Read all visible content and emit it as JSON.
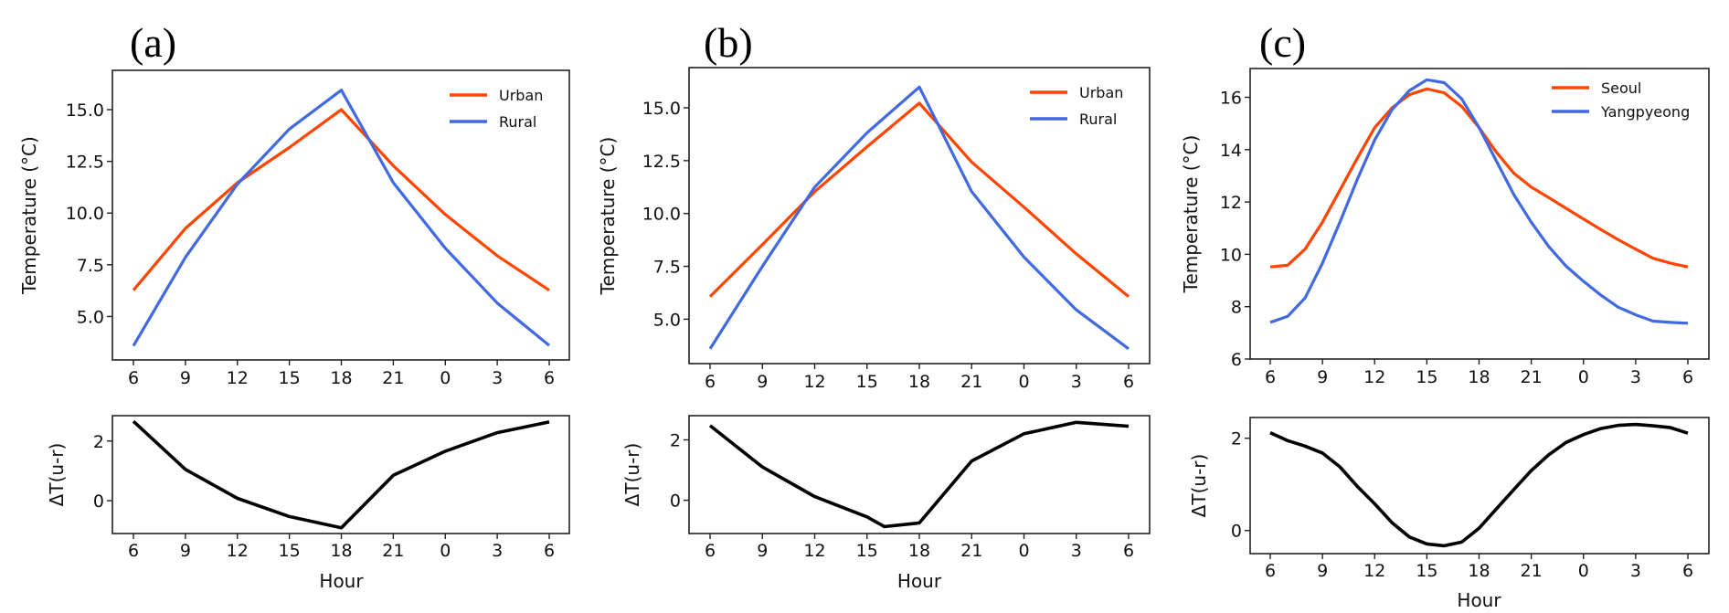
{
  "figure": {
    "panels": [
      "(a)",
      "(b)",
      "(c)"
    ],
    "colors": {
      "urban": "#ff4500",
      "rural": "#4169e1",
      "delta": "#000000"
    }
  },
  "chart_data": [
    {
      "id": "a-temp",
      "type": "line",
      "panel_label": "(a)",
      "title": "",
      "xlabel": "",
      "ylabel": "Temperature (°C)",
      "x": [
        0,
        3,
        6,
        9,
        12,
        15,
        18,
        21,
        24
      ],
      "xtick_labels": [
        "6",
        "9",
        "12",
        "15",
        "18",
        "21",
        "0",
        "3",
        "6"
      ],
      "yticks": [
        5.0,
        7.5,
        10.0,
        12.5,
        15.0
      ],
      "ytick_labels": [
        "5.0",
        "7.5",
        "10.0",
        "12.5",
        "15.0"
      ],
      "ylim": [
        2.9,
        16.9
      ],
      "legend_position": "top-right",
      "series": [
        {
          "name": "Urban",
          "color": "#ff4500",
          "values": [
            6.27,
            9.26,
            11.47,
            13.17,
            15.0,
            12.29,
            9.93,
            7.94,
            6.27
          ]
        },
        {
          "name": "Rural",
          "color": "#4169e1",
          "values": [
            3.58,
            7.86,
            11.4,
            14.06,
            15.94,
            11.47,
            8.3,
            5.65,
            3.6
          ]
        }
      ]
    },
    {
      "id": "a-delta",
      "type": "line",
      "panel_label": "",
      "xlabel": "Hour",
      "ylabel": "ΔT(u-r)",
      "x": [
        0,
        3,
        6,
        9,
        12,
        15,
        18,
        21,
        24
      ],
      "xtick_labels": [
        "6",
        "9",
        "12",
        "15",
        "18",
        "21",
        "0",
        "3",
        "6"
      ],
      "yticks": [
        0,
        2
      ],
      "ytick_labels": [
        "0",
        "2"
      ],
      "ylim": [
        -1.1,
        2.85
      ],
      "series": [
        {
          "name": "ΔT",
          "color": "#000000",
          "values": [
            2.66,
            1.05,
            0.08,
            -0.53,
            -0.91,
            0.85,
            1.66,
            2.28,
            2.64
          ]
        }
      ]
    },
    {
      "id": "b-temp",
      "type": "line",
      "panel_label": "(b)",
      "xlabel": "",
      "ylabel": "Temperature (°C)",
      "x": [
        0,
        3,
        6,
        9,
        12,
        15,
        18,
        21,
        24
      ],
      "xtick_labels": [
        "6",
        "9",
        "12",
        "15",
        "18",
        "21",
        "0",
        "3",
        "6"
      ],
      "yticks": [
        5.0,
        7.5,
        10.0,
        12.5,
        15.0
      ],
      "ytick_labels": [
        "5.0",
        "7.5",
        "10.0",
        "12.5",
        "15.0"
      ],
      "ylim": [
        2.9,
        16.9
      ],
      "legend_position": "top-right",
      "series": [
        {
          "name": "Urban",
          "color": "#ff4500",
          "values": [
            6.07,
            8.53,
            11.03,
            13.16,
            15.22,
            12.43,
            10.3,
            8.09,
            6.07
          ]
        },
        {
          "name": "Rural",
          "color": "#4169e1",
          "values": [
            3.6,
            7.5,
            11.25,
            13.82,
            15.98,
            11.03,
            7.94,
            5.44,
            3.6
          ]
        }
      ]
    },
    {
      "id": "b-delta",
      "type": "line",
      "panel_label": "",
      "xlabel": "Hour",
      "ylabel": "ΔT(u-r)",
      "x": [
        0,
        3,
        6,
        9,
        10,
        12,
        15,
        18,
        21,
        24
      ],
      "xtick_labels": [
        "6",
        "9",
        "12",
        "15",
        "18",
        "21",
        "0",
        "3",
        "6"
      ],
      "yticks": [
        0,
        2
      ],
      "ytick_labels": [
        "0",
        "2"
      ],
      "ylim": [
        -1.1,
        2.8
      ],
      "series": [
        {
          "name": "ΔT",
          "color": "#000000",
          "values": [
            2.47,
            1.1,
            0.12,
            -0.55,
            -0.87,
            -0.75,
            1.3,
            2.2,
            2.58,
            2.45
          ]
        }
      ]
    },
    {
      "id": "c-temp",
      "type": "line",
      "panel_label": "(c)",
      "xlabel": "",
      "ylabel": "Temperature (°C)",
      "x": [
        0,
        1,
        2,
        3,
        4,
        5,
        6,
        7,
        8,
        9,
        10,
        11,
        12,
        13,
        14,
        15,
        16,
        17,
        18,
        19,
        20,
        21,
        22,
        23,
        24
      ],
      "xtick_positions": [
        0,
        3,
        6,
        9,
        12,
        15,
        18,
        21,
        24
      ],
      "xtick_labels": [
        "6",
        "9",
        "12",
        "15",
        "18",
        "21",
        "0",
        "3",
        "6"
      ],
      "yticks": [
        6,
        8,
        10,
        12,
        14,
        16
      ],
      "ytick_labels": [
        "6",
        "8",
        "10",
        "12",
        "14",
        "16"
      ],
      "ylim": [
        6,
        17.1
      ],
      "legend_position": "top-right",
      "series": [
        {
          "name": "Seoul",
          "color": "#ff4500",
          "values": [
            9.52,
            9.58,
            10.2,
            11.23,
            12.45,
            13.67,
            14.84,
            15.6,
            16.1,
            16.32,
            16.17,
            15.65,
            14.84,
            13.9,
            13.1,
            12.57,
            12.17,
            11.76,
            11.35,
            10.95,
            10.56,
            10.2,
            9.85,
            9.66,
            9.52
          ]
        },
        {
          "name": "Yangpyeong",
          "color": "#4169e1",
          "values": [
            7.4,
            7.63,
            8.33,
            9.66,
            11.23,
            12.86,
            14.37,
            15.53,
            16.26,
            16.67,
            16.56,
            15.94,
            14.84,
            13.56,
            12.28,
            11.23,
            10.3,
            9.55,
            8.97,
            8.44,
            7.98,
            7.69,
            7.45,
            7.4,
            7.37
          ]
        }
      ]
    },
    {
      "id": "c-delta",
      "type": "line",
      "panel_label": "",
      "xlabel": "Hour",
      "ylabel": "ΔT(u-r)",
      "x": [
        0,
        1,
        2,
        3,
        4,
        5,
        6,
        7,
        8,
        9,
        10,
        11,
        12,
        13,
        14,
        15,
        16,
        17,
        18,
        19,
        20,
        21,
        22,
        23,
        24
      ],
      "xtick_positions": [
        0,
        3,
        6,
        9,
        12,
        15,
        18,
        21,
        24
      ],
      "xtick_labels": [
        "6",
        "9",
        "12",
        "15",
        "18",
        "21",
        "0",
        "3",
        "6"
      ],
      "yticks": [
        0,
        2
      ],
      "ytick_labels": [
        "0",
        "2"
      ],
      "ylim": [
        -0.5,
        2.45
      ],
      "series": [
        {
          "name": "ΔT",
          "color": "#000000",
          "values": [
            2.12,
            1.95,
            1.83,
            1.68,
            1.38,
            0.96,
            0.58,
            0.17,
            -0.14,
            -0.29,
            -0.33,
            -0.25,
            0.05,
            0.47,
            0.89,
            1.3,
            1.64,
            1.91,
            2.08,
            2.21,
            2.28,
            2.3,
            2.27,
            2.23,
            2.11
          ]
        }
      ]
    }
  ]
}
